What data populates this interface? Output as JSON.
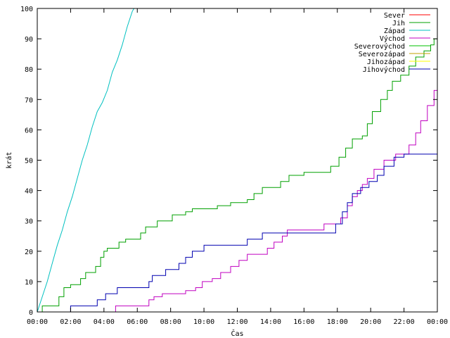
{
  "chart_data": {
    "type": "line",
    "title": "",
    "xlabel": "Čas",
    "ylabel": "krát",
    "xlim": [
      0,
      24
    ],
    "ylim": [
      0,
      100
    ],
    "x_ticks": [
      "00:00",
      "02:00",
      "04:00",
      "06:00",
      "08:00",
      "10:00",
      "12:00",
      "14:00",
      "16:00",
      "18:00",
      "20:00",
      "22:00",
      "00:00"
    ],
    "y_ticks": [
      0,
      10,
      20,
      30,
      40,
      50,
      60,
      70,
      80,
      90,
      100
    ],
    "grid": false,
    "legend_position": "top-right",
    "series": [
      {
        "name": "Sever",
        "color": "#ff0000",
        "points": []
      },
      {
        "name": "Jih",
        "color": "#00a000",
        "points": [
          [
            0,
            0
          ],
          [
            0.3,
            0
          ],
          [
            0.3,
            2
          ],
          [
            1.3,
            2
          ],
          [
            1.3,
            5
          ],
          [
            1.6,
            5
          ],
          [
            1.6,
            8
          ],
          [
            2.0,
            8
          ],
          [
            2.0,
            9
          ],
          [
            2.6,
            9
          ],
          [
            2.6,
            11
          ],
          [
            2.9,
            11
          ],
          [
            2.9,
            13
          ],
          [
            3.5,
            13
          ],
          [
            3.5,
            15
          ],
          [
            3.8,
            15
          ],
          [
            3.8,
            18
          ],
          [
            4.0,
            18
          ],
          [
            4.0,
            20
          ],
          [
            4.2,
            20
          ],
          [
            4.2,
            21
          ],
          [
            4.9,
            21
          ],
          [
            4.9,
            23
          ],
          [
            5.3,
            23
          ],
          [
            5.3,
            24
          ],
          [
            6.2,
            24
          ],
          [
            6.2,
            26
          ],
          [
            6.5,
            26
          ],
          [
            6.5,
            28
          ],
          [
            7.2,
            28
          ],
          [
            7.2,
            30
          ],
          [
            8.1,
            30
          ],
          [
            8.1,
            32
          ],
          [
            8.9,
            32
          ],
          [
            8.9,
            33
          ],
          [
            9.3,
            33
          ],
          [
            9.3,
            34
          ],
          [
            10.8,
            34
          ],
          [
            10.8,
            35
          ],
          [
            11.6,
            35
          ],
          [
            11.6,
            36
          ],
          [
            12.6,
            36
          ],
          [
            12.6,
            37
          ],
          [
            13.0,
            37
          ],
          [
            13.0,
            39
          ],
          [
            13.5,
            39
          ],
          [
            13.5,
            41
          ],
          [
            14.6,
            41
          ],
          [
            14.6,
            43
          ],
          [
            15.1,
            43
          ],
          [
            15.1,
            45
          ],
          [
            16.0,
            45
          ],
          [
            16.0,
            46
          ],
          [
            17.6,
            46
          ],
          [
            17.6,
            48
          ],
          [
            18.1,
            48
          ],
          [
            18.1,
            51
          ],
          [
            18.5,
            51
          ],
          [
            18.5,
            54
          ],
          [
            18.9,
            54
          ],
          [
            18.9,
            57
          ],
          [
            19.5,
            57
          ],
          [
            19.5,
            58
          ],
          [
            19.8,
            58
          ],
          [
            19.8,
            62
          ],
          [
            20.1,
            62
          ],
          [
            20.1,
            66
          ],
          [
            20.6,
            66
          ],
          [
            20.6,
            70
          ],
          [
            21.0,
            70
          ],
          [
            21.0,
            73
          ],
          [
            21.3,
            73
          ],
          [
            21.3,
            76
          ],
          [
            21.8,
            76
          ],
          [
            21.8,
            78
          ],
          [
            22.3,
            78
          ],
          [
            22.3,
            81
          ],
          [
            22.7,
            81
          ],
          [
            22.7,
            84
          ],
          [
            23.2,
            84
          ],
          [
            23.2,
            86
          ],
          [
            23.6,
            86
          ],
          [
            23.6,
            88
          ],
          [
            23.8,
            88
          ],
          [
            23.8,
            90
          ],
          [
            24,
            90
          ]
        ]
      },
      {
        "name": "Západ",
        "color": "#00c0c0",
        "points": [
          [
            0,
            0
          ],
          [
            0.3,
            5
          ],
          [
            0.6,
            10
          ],
          [
            0.9,
            16
          ],
          [
            1.2,
            22
          ],
          [
            1.5,
            27
          ],
          [
            1.8,
            33
          ],
          [
            2.1,
            38
          ],
          [
            2.4,
            44
          ],
          [
            2.7,
            50
          ],
          [
            3.0,
            55
          ],
          [
            3.3,
            61
          ],
          [
            3.6,
            66
          ],
          [
            3.9,
            69
          ],
          [
            4.2,
            73
          ],
          [
            4.5,
            79
          ],
          [
            4.8,
            83
          ],
          [
            5.1,
            88
          ],
          [
            5.4,
            94
          ],
          [
            5.7,
            99
          ],
          [
            5.8,
            100
          ]
        ]
      },
      {
        "name": "Východ",
        "color": "#c000c0",
        "points": [
          [
            0,
            0
          ],
          [
            4.7,
            0
          ],
          [
            4.7,
            2
          ],
          [
            6.7,
            2
          ],
          [
            6.7,
            4
          ],
          [
            7.0,
            4
          ],
          [
            7.0,
            5
          ],
          [
            7.5,
            5
          ],
          [
            7.5,
            6
          ],
          [
            8.9,
            6
          ],
          [
            8.9,
            7
          ],
          [
            9.5,
            7
          ],
          [
            9.5,
            8
          ],
          [
            9.9,
            8
          ],
          [
            9.9,
            10
          ],
          [
            10.5,
            10
          ],
          [
            10.5,
            11
          ],
          [
            11.0,
            11
          ],
          [
            11.0,
            13
          ],
          [
            11.6,
            13
          ],
          [
            11.6,
            15
          ],
          [
            12.1,
            15
          ],
          [
            12.1,
            17
          ],
          [
            12.6,
            17
          ],
          [
            12.6,
            19
          ],
          [
            13.8,
            19
          ],
          [
            13.8,
            21
          ],
          [
            14.2,
            21
          ],
          [
            14.2,
            23
          ],
          [
            14.7,
            23
          ],
          [
            14.7,
            25
          ],
          [
            15.0,
            25
          ],
          [
            15.0,
            27
          ],
          [
            17.2,
            27
          ],
          [
            17.2,
            29
          ],
          [
            18.2,
            29
          ],
          [
            18.2,
            31
          ],
          [
            18.6,
            31
          ],
          [
            18.6,
            35
          ],
          [
            18.9,
            35
          ],
          [
            18.9,
            38
          ],
          [
            19.2,
            38
          ],
          [
            19.2,
            40
          ],
          [
            19.5,
            40
          ],
          [
            19.5,
            42
          ],
          [
            19.8,
            42
          ],
          [
            19.8,
            44
          ],
          [
            20.2,
            44
          ],
          [
            20.2,
            47
          ],
          [
            20.8,
            47
          ],
          [
            20.8,
            50
          ],
          [
            21.5,
            50
          ],
          [
            21.5,
            52
          ],
          [
            22.3,
            52
          ],
          [
            22.3,
            55
          ],
          [
            22.7,
            55
          ],
          [
            22.7,
            59
          ],
          [
            23.0,
            59
          ],
          [
            23.0,
            63
          ],
          [
            23.4,
            63
          ],
          [
            23.4,
            68
          ],
          [
            23.8,
            68
          ],
          [
            23.8,
            73
          ],
          [
            24,
            73
          ]
        ]
      },
      {
        "name": "Severovýchod",
        "color": "#00c000",
        "points": []
      },
      {
        "name": "Severozápad",
        "color": "#c0a000",
        "points": []
      },
      {
        "name": "Jihozápad",
        "color": "#ffff00",
        "points": []
      },
      {
        "name": "Jihovýchod",
        "color": "#0000b0",
        "points": [
          [
            0,
            0
          ],
          [
            2.0,
            0
          ],
          [
            2.0,
            2
          ],
          [
            3.6,
            2
          ],
          [
            3.6,
            4
          ],
          [
            4.1,
            4
          ],
          [
            4.1,
            6
          ],
          [
            4.8,
            6
          ],
          [
            4.8,
            8
          ],
          [
            6.7,
            8
          ],
          [
            6.7,
            10
          ],
          [
            6.9,
            10
          ],
          [
            6.9,
            12
          ],
          [
            7.7,
            12
          ],
          [
            7.7,
            14
          ],
          [
            8.5,
            14
          ],
          [
            8.5,
            16
          ],
          [
            8.9,
            16
          ],
          [
            8.9,
            18
          ],
          [
            9.3,
            18
          ],
          [
            9.3,
            20
          ],
          [
            10.0,
            20
          ],
          [
            10.0,
            22
          ],
          [
            12.6,
            22
          ],
          [
            12.6,
            24
          ],
          [
            13.5,
            24
          ],
          [
            13.5,
            26
          ],
          [
            17.9,
            26
          ],
          [
            17.9,
            29
          ],
          [
            18.3,
            29
          ],
          [
            18.3,
            33
          ],
          [
            18.6,
            33
          ],
          [
            18.6,
            36
          ],
          [
            18.9,
            36
          ],
          [
            18.9,
            39
          ],
          [
            19.4,
            39
          ],
          [
            19.4,
            41
          ],
          [
            19.9,
            41
          ],
          [
            19.9,
            43
          ],
          [
            20.4,
            43
          ],
          [
            20.4,
            45
          ],
          [
            20.8,
            45
          ],
          [
            20.8,
            48
          ],
          [
            21.4,
            48
          ],
          [
            21.4,
            51
          ],
          [
            22.0,
            51
          ],
          [
            22.0,
            52
          ],
          [
            24,
            52
          ]
        ]
      }
    ]
  }
}
